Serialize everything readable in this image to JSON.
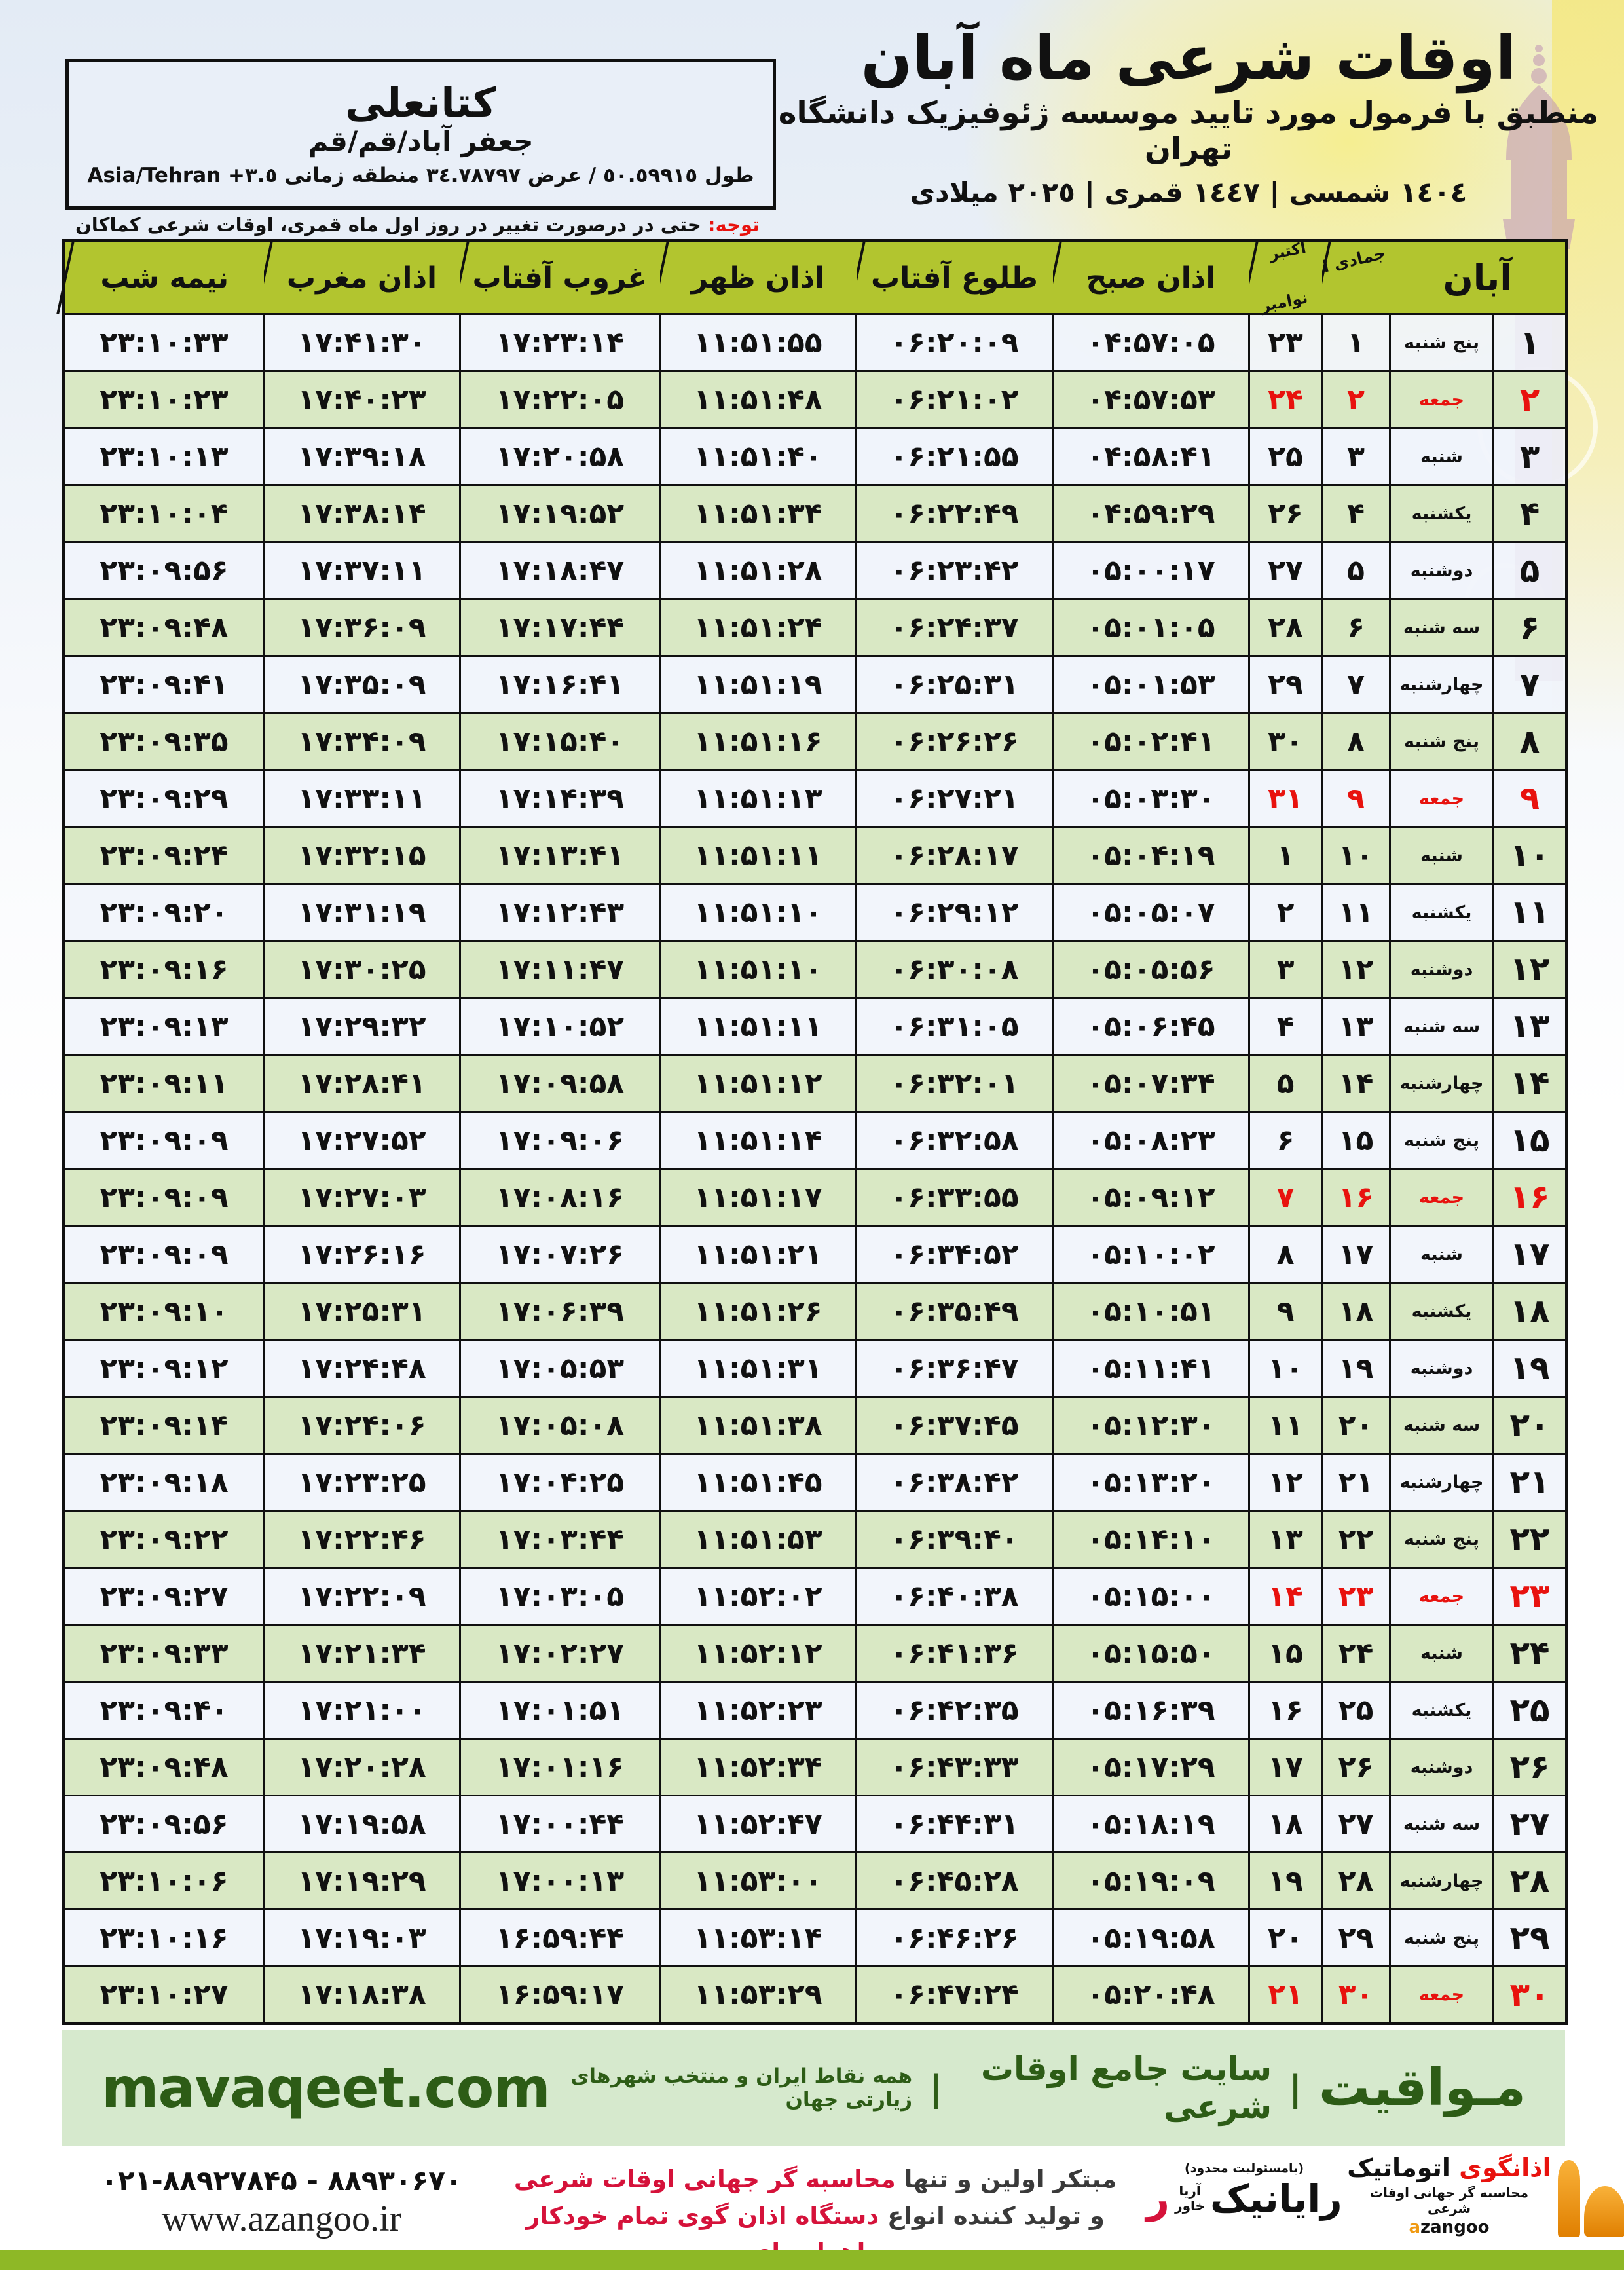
{
  "header": {
    "title": "اوقات شرعی ماه آبان",
    "subtitle": "منطبق با فرمول مورد تایید موسسه ژئوفیزیک دانشگاه تهران",
    "dates": "١٤٠٤ شمسی | ١٤٤٧ قمری | ٢٠٢٥ میلادی"
  },
  "location_box": {
    "name": "کتانعلی",
    "region": "جعفر آباد/قم/قم",
    "coords": "طول ٥٠.٥٩٩١٥ / عرض ٣٤.٧٨٧٩٧ منطقه زمانی ٣.٥+ Asia/Tehran"
  },
  "note": {
    "label": "توجه:",
    "text": " حتی در درصورت تغییر در روز اول ماه قمری، اوقات شرعی کماکان برای روزهای شمسی و میلادی معتبر است."
  },
  "table": {
    "columns": {
      "aban": "آبان",
      "jumada": "جمادی الاول",
      "greg_top": "اکتبر",
      "greg_bottom": "نوامبر",
      "sobh": "اذان صبح",
      "tolu": "طلوع آفتاب",
      "zohr": "اذان ظهر",
      "ghorub": "غروب آفتاب",
      "maghreb": "اذان مغرب",
      "nimeshab": "نیمه شب"
    },
    "rows": [
      {
        "d": "۱",
        "w": "پنج شنبه",
        "j": "۱",
        "g": "۲۳",
        "sobh": "۰۴:۵۷:۰۵",
        "tolu": "۰۶:۲۰:۰۹",
        "zohr": "۱۱:۵۱:۵۵",
        "ghorub": "۱۷:۲۳:۱۴",
        "maghreb": "۱۷:۴۱:۳۰",
        "nim": "۲۳:۱۰:۳۳",
        "fri": false
      },
      {
        "d": "۲",
        "w": "جمعه",
        "j": "۲",
        "g": "۲۴",
        "sobh": "۰۴:۵۷:۵۳",
        "tolu": "۰۶:۲۱:۰۲",
        "zohr": "۱۱:۵۱:۴۸",
        "ghorub": "۱۷:۲۲:۰۵",
        "maghreb": "۱۷:۴۰:۲۳",
        "nim": "۲۳:۱۰:۲۳",
        "fri": true
      },
      {
        "d": "۳",
        "w": "شنبه",
        "j": "۳",
        "g": "۲۵",
        "sobh": "۰۴:۵۸:۴۱",
        "tolu": "۰۶:۲۱:۵۵",
        "zohr": "۱۱:۵۱:۴۰",
        "ghorub": "۱۷:۲۰:۵۸",
        "maghreb": "۱۷:۳۹:۱۸",
        "nim": "۲۳:۱۰:۱۳",
        "fri": false
      },
      {
        "d": "۴",
        "w": "یکشنبه",
        "j": "۴",
        "g": "۲۶",
        "sobh": "۰۴:۵۹:۲۹",
        "tolu": "۰۶:۲۲:۴۹",
        "zohr": "۱۱:۵۱:۳۴",
        "ghorub": "۱۷:۱۹:۵۲",
        "maghreb": "۱۷:۳۸:۱۴",
        "nim": "۲۳:۱۰:۰۴",
        "fri": false
      },
      {
        "d": "۵",
        "w": "دوشنبه",
        "j": "۵",
        "g": "۲۷",
        "sobh": "۰۵:۰۰:۱۷",
        "tolu": "۰۶:۲۳:۴۲",
        "zohr": "۱۱:۵۱:۲۸",
        "ghorub": "۱۷:۱۸:۴۷",
        "maghreb": "۱۷:۳۷:۱۱",
        "nim": "۲۳:۰۹:۵۶",
        "fri": false
      },
      {
        "d": "۶",
        "w": "سه شنبه",
        "j": "۶",
        "g": "۲۸",
        "sobh": "۰۵:۰۱:۰۵",
        "tolu": "۰۶:۲۴:۳۷",
        "zohr": "۱۱:۵۱:۲۴",
        "ghorub": "۱۷:۱۷:۴۴",
        "maghreb": "۱۷:۳۶:۰۹",
        "nim": "۲۳:۰۹:۴۸",
        "fri": false
      },
      {
        "d": "۷",
        "w": "چهارشنبه",
        "j": "۷",
        "g": "۲۹",
        "sobh": "۰۵:۰۱:۵۳",
        "tolu": "۰۶:۲۵:۳۱",
        "zohr": "۱۱:۵۱:۱۹",
        "ghorub": "۱۷:۱۶:۴۱",
        "maghreb": "۱۷:۳۵:۰۹",
        "nim": "۲۳:۰۹:۴۱",
        "fri": false
      },
      {
        "d": "۸",
        "w": "پنج شنبه",
        "j": "۸",
        "g": "۳۰",
        "sobh": "۰۵:۰۲:۴۱",
        "tolu": "۰۶:۲۶:۲۶",
        "zohr": "۱۱:۵۱:۱۶",
        "ghorub": "۱۷:۱۵:۴۰",
        "maghreb": "۱۷:۳۴:۰۹",
        "nim": "۲۳:۰۹:۳۵",
        "fri": false
      },
      {
        "d": "۹",
        "w": "جمعه",
        "j": "۹",
        "g": "۳۱",
        "sobh": "۰۵:۰۳:۳۰",
        "tolu": "۰۶:۲۷:۲۱",
        "zohr": "۱۱:۵۱:۱۳",
        "ghorub": "۱۷:۱۴:۳۹",
        "maghreb": "۱۷:۳۳:۱۱",
        "nim": "۲۳:۰۹:۲۹",
        "fri": true
      },
      {
        "d": "۱۰",
        "w": "شنبه",
        "j": "۱۰",
        "g": "۱",
        "sobh": "۰۵:۰۴:۱۹",
        "tolu": "۰۶:۲۸:۱۷",
        "zohr": "۱۱:۵۱:۱۱",
        "ghorub": "۱۷:۱۳:۴۱",
        "maghreb": "۱۷:۳۲:۱۵",
        "nim": "۲۳:۰۹:۲۴",
        "fri": false
      },
      {
        "d": "۱۱",
        "w": "یکشنبه",
        "j": "۱۱",
        "g": "۲",
        "sobh": "۰۵:۰۵:۰۷",
        "tolu": "۰۶:۲۹:۱۲",
        "zohr": "۱۱:۵۱:۱۰",
        "ghorub": "۱۷:۱۲:۴۳",
        "maghreb": "۱۷:۳۱:۱۹",
        "nim": "۲۳:۰۹:۲۰",
        "fri": false
      },
      {
        "d": "۱۲",
        "w": "دوشنبه",
        "j": "۱۲",
        "g": "۳",
        "sobh": "۰۵:۰۵:۵۶",
        "tolu": "۰۶:۳۰:۰۸",
        "zohr": "۱۱:۵۱:۱۰",
        "ghorub": "۱۷:۱۱:۴۷",
        "maghreb": "۱۷:۳۰:۲۵",
        "nim": "۲۳:۰۹:۱۶",
        "fri": false
      },
      {
        "d": "۱۳",
        "w": "سه شنبه",
        "j": "۱۳",
        "g": "۴",
        "sobh": "۰۵:۰۶:۴۵",
        "tolu": "۰۶:۳۱:۰۵",
        "zohr": "۱۱:۵۱:۱۱",
        "ghorub": "۱۷:۱۰:۵۲",
        "maghreb": "۱۷:۲۹:۳۲",
        "nim": "۲۳:۰۹:۱۳",
        "fri": false
      },
      {
        "d": "۱۴",
        "w": "چهارشنبه",
        "j": "۱۴",
        "g": "۵",
        "sobh": "۰۵:۰۷:۳۴",
        "tolu": "۰۶:۳۲:۰۱",
        "zohr": "۱۱:۵۱:۱۲",
        "ghorub": "۱۷:۰۹:۵۸",
        "maghreb": "۱۷:۲۸:۴۱",
        "nim": "۲۳:۰۹:۱۱",
        "fri": false
      },
      {
        "d": "۱۵",
        "w": "پنج شنبه",
        "j": "۱۵",
        "g": "۶",
        "sobh": "۰۵:۰۸:۲۳",
        "tolu": "۰۶:۳۲:۵۸",
        "zohr": "۱۱:۵۱:۱۴",
        "ghorub": "۱۷:۰۹:۰۶",
        "maghreb": "۱۷:۲۷:۵۲",
        "nim": "۲۳:۰۹:۰۹",
        "fri": false
      },
      {
        "d": "۱۶",
        "w": "جمعه",
        "j": "۱۶",
        "g": "۷",
        "sobh": "۰۵:۰۹:۱۲",
        "tolu": "۰۶:۳۳:۵۵",
        "zohr": "۱۱:۵۱:۱۷",
        "ghorub": "۱۷:۰۸:۱۶",
        "maghreb": "۱۷:۲۷:۰۳",
        "nim": "۲۳:۰۹:۰۹",
        "fri": true
      },
      {
        "d": "۱۷",
        "w": "شنبه",
        "j": "۱۷",
        "g": "۸",
        "sobh": "۰۵:۱۰:۰۲",
        "tolu": "۰۶:۳۴:۵۲",
        "zohr": "۱۱:۵۱:۲۱",
        "ghorub": "۱۷:۰۷:۲۶",
        "maghreb": "۱۷:۲۶:۱۶",
        "nim": "۲۳:۰۹:۰۹",
        "fri": false
      },
      {
        "d": "۱۸",
        "w": "یکشنبه",
        "j": "۱۸",
        "g": "۹",
        "sobh": "۰۵:۱۰:۵۱",
        "tolu": "۰۶:۳۵:۴۹",
        "zohr": "۱۱:۵۱:۲۶",
        "ghorub": "۱۷:۰۶:۳۹",
        "maghreb": "۱۷:۲۵:۳۱",
        "nim": "۲۳:۰۹:۱۰",
        "fri": false
      },
      {
        "d": "۱۹",
        "w": "دوشنبه",
        "j": "۱۹",
        "g": "۱۰",
        "sobh": "۰۵:۱۱:۴۱",
        "tolu": "۰۶:۳۶:۴۷",
        "zohr": "۱۱:۵۱:۳۱",
        "ghorub": "۱۷:۰۵:۵۳",
        "maghreb": "۱۷:۲۴:۴۸",
        "nim": "۲۳:۰۹:۱۲",
        "fri": false
      },
      {
        "d": "۲۰",
        "w": "سه شنبه",
        "j": "۲۰",
        "g": "۱۱",
        "sobh": "۰۵:۱۲:۳۰",
        "tolu": "۰۶:۳۷:۴۵",
        "zohr": "۱۱:۵۱:۳۸",
        "ghorub": "۱۷:۰۵:۰۸",
        "maghreb": "۱۷:۲۴:۰۶",
        "nim": "۲۳:۰۹:۱۴",
        "fri": false
      },
      {
        "d": "۲۱",
        "w": "چهارشنبه",
        "j": "۲۱",
        "g": "۱۲",
        "sobh": "۰۵:۱۳:۲۰",
        "tolu": "۰۶:۳۸:۴۲",
        "zohr": "۱۱:۵۱:۴۵",
        "ghorub": "۱۷:۰۴:۲۵",
        "maghreb": "۱۷:۲۳:۲۵",
        "nim": "۲۳:۰۹:۱۸",
        "fri": false
      },
      {
        "d": "۲۲",
        "w": "پنج شنبه",
        "j": "۲۲",
        "g": "۱۳",
        "sobh": "۰۵:۱۴:۱۰",
        "tolu": "۰۶:۳۹:۴۰",
        "zohr": "۱۱:۵۱:۵۳",
        "ghorub": "۱۷:۰۳:۴۴",
        "maghreb": "۱۷:۲۲:۴۶",
        "nim": "۲۳:۰۹:۲۲",
        "fri": false
      },
      {
        "d": "۲۳",
        "w": "جمعه",
        "j": "۲۳",
        "g": "۱۴",
        "sobh": "۰۵:۱۵:۰۰",
        "tolu": "۰۶:۴۰:۳۸",
        "zohr": "۱۱:۵۲:۰۲",
        "ghorub": "۱۷:۰۳:۰۵",
        "maghreb": "۱۷:۲۲:۰۹",
        "nim": "۲۳:۰۹:۲۷",
        "fri": true
      },
      {
        "d": "۲۴",
        "w": "شنبه",
        "j": "۲۴",
        "g": "۱۵",
        "sobh": "۰۵:۱۵:۵۰",
        "tolu": "۰۶:۴۱:۳۶",
        "zohr": "۱۱:۵۲:۱۲",
        "ghorub": "۱۷:۰۲:۲۷",
        "maghreb": "۱۷:۲۱:۳۴",
        "nim": "۲۳:۰۹:۳۳",
        "fri": false
      },
      {
        "d": "۲۵",
        "w": "یکشنبه",
        "j": "۲۵",
        "g": "۱۶",
        "sobh": "۰۵:۱۶:۳۹",
        "tolu": "۰۶:۴۲:۳۵",
        "zohr": "۱۱:۵۲:۲۳",
        "ghorub": "۱۷:۰۱:۵۱",
        "maghreb": "۱۷:۲۱:۰۰",
        "nim": "۲۳:۰۹:۴۰",
        "fri": false
      },
      {
        "d": "۲۶",
        "w": "دوشنبه",
        "j": "۲۶",
        "g": "۱۷",
        "sobh": "۰۵:۱۷:۲۹",
        "tolu": "۰۶:۴۳:۳۳",
        "zohr": "۱۱:۵۲:۳۴",
        "ghorub": "۱۷:۰۱:۱۶",
        "maghreb": "۱۷:۲۰:۲۸",
        "nim": "۲۳:۰۹:۴۸",
        "fri": false
      },
      {
        "d": "۲۷",
        "w": "سه شنبه",
        "j": "۲۷",
        "g": "۱۸",
        "sobh": "۰۵:۱۸:۱۹",
        "tolu": "۰۶:۴۴:۳۱",
        "zohr": "۱۱:۵۲:۴۷",
        "ghorub": "۱۷:۰۰:۴۴",
        "maghreb": "۱۷:۱۹:۵۸",
        "nim": "۲۳:۰۹:۵۶",
        "fri": false
      },
      {
        "d": "۲۸",
        "w": "چهارشنبه",
        "j": "۲۸",
        "g": "۱۹",
        "sobh": "۰۵:۱۹:۰۹",
        "tolu": "۰۶:۴۵:۲۸",
        "zohr": "۱۱:۵۳:۰۰",
        "ghorub": "۱۷:۰۰:۱۳",
        "maghreb": "۱۷:۱۹:۲۹",
        "nim": "۲۳:۱۰:۰۶",
        "fri": false
      },
      {
        "d": "۲۹",
        "w": "پنج شنبه",
        "j": "۲۹",
        "g": "۲۰",
        "sobh": "۰۵:۱۹:۵۸",
        "tolu": "۰۶:۴۶:۲۶",
        "zohr": "۱۱:۵۳:۱۴",
        "ghorub": "۱۶:۵۹:۴۴",
        "maghreb": "۱۷:۱۹:۰۳",
        "nim": "۲۳:۱۰:۱۶",
        "fri": false
      },
      {
        "d": "۳۰",
        "w": "جمعه",
        "j": "۳۰",
        "g": "۲۱",
        "sobh": "۰۵:۲۰:۴۸",
        "tolu": "۰۶:۴۷:۲۴",
        "zohr": "۱۱:۵۳:۲۹",
        "ghorub": "۱۶:۵۹:۱۷",
        "maghreb": "۱۷:۱۸:۳۸",
        "nim": "۲۳:۱۰:۲۷",
        "fri": true
      }
    ]
  },
  "mavaqeet_bar": {
    "brand": "مـواقیت",
    "separator": "|",
    "site_desc": "سایت جامع اوقات شرعی",
    "site_scope": "همه نقاط ایران و منتخب شهرهای زیارتی جهان",
    "domain": "mavaqeet.com"
  },
  "bottom": {
    "phones": "۰۲۱-۸۸۹۲۷۸۴۵ - ۸۸۹۳۰۶۷۰",
    "website": "www.azangoo.ir",
    "tagline1_dark": "مبتکر اولین و تنها ",
    "tagline1_red": "محاسبه گر جهانی اوقات شرعی",
    "tagline2_dark": "و تولید کننده انواع ",
    "tagline2_red": "دستگاه اذان گوی تمام خودکار ماهواره ای",
    "rayanik_note": "(بامسئولیت محدود)",
    "rayanik_name": "رایانیک",
    "rayanik_sub": "آریا\nخاور",
    "rayanik_mark": "ر",
    "azangoo_fa_first": "اذانگوی",
    "azangoo_fa_rest": " اتوماتیک",
    "azangoo_sub": "محاسبه گر جهانی اوقات شرعی",
    "azangoo_latin_first": "a",
    "azangoo_latin_rest": "zangoo"
  },
  "colors": {
    "header_green": "#b2c52f",
    "row_green": "#d9e8c4",
    "row_light": "#f0f4fa",
    "friday_red": "#e8120e",
    "bar_bg": "#d6e9cd",
    "bar_text_green": "#2d5c16",
    "lime_strip": "#8eb826",
    "note_red": "#e8120e"
  }
}
